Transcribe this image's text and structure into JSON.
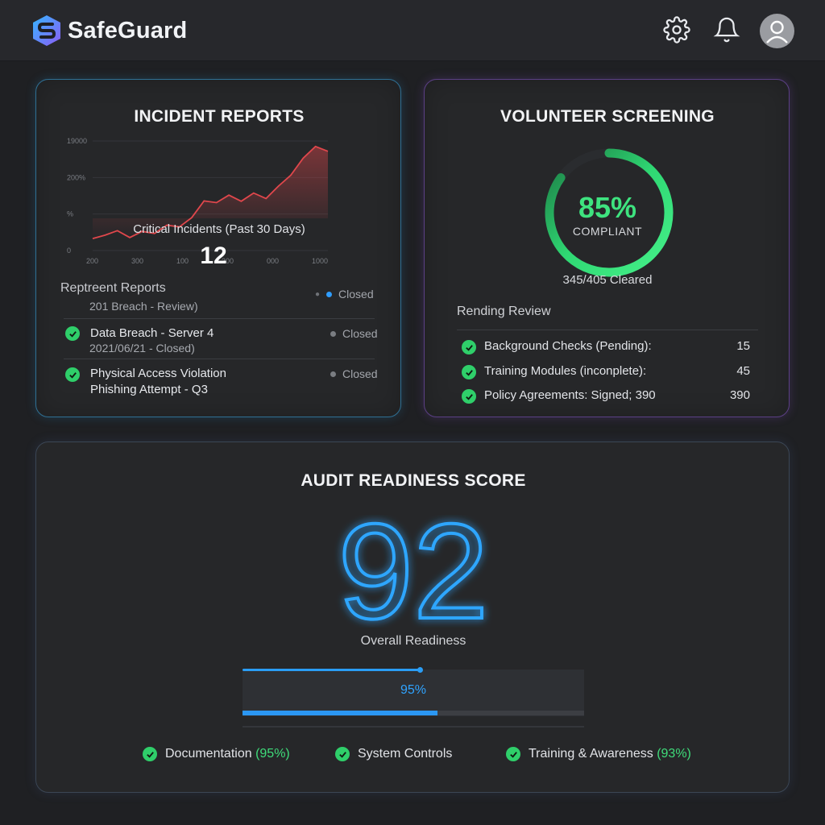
{
  "app": {
    "name": "SafeGuard"
  },
  "header": {
    "settings_icon": "gear-icon",
    "notifications_icon": "bell-icon",
    "avatar_icon": "user-avatar-icon"
  },
  "incident_reports": {
    "title": "INCIDENT REPORTS",
    "chart_data": {
      "type": "area",
      "y_ticks": [
        "19000",
        "200%",
        "%",
        "0"
      ],
      "x_ticks": [
        "200",
        "300",
        "100",
        "300",
        "000",
        "1000"
      ],
      "x": [
        1,
        2,
        3,
        4,
        5,
        6,
        7,
        8,
        9,
        10,
        11,
        12,
        13,
        14,
        15,
        16,
        17,
        18,
        19,
        20
      ],
      "values": [
        3.5,
        4.5,
        5.8,
        3.8,
        5.6,
        5.0,
        7.4,
        6.9,
        9.6,
        14.5,
        14.0,
        16.2,
        14.4,
        16.8,
        15.2,
        18.8,
        22.0,
        27.0,
        30.4,
        29.0
      ],
      "ylim": [
        0,
        32
      ],
      "color": "#e0474c",
      "grid": true
    },
    "caption": "Critical Incidents (Past 30 Days)",
    "count": "12",
    "reports_heading": "Reptreent Reports",
    "rows": [
      {
        "title": "",
        "subtitle": "201 Breach - Review)",
        "status": "Closed",
        "status_dot": "#2f9dff"
      },
      {
        "title": "Data Breach - Server 4",
        "subtitle": "2021/06/21 - Closed)",
        "status": "Closed",
        "status_dot": "#7a7d82"
      },
      {
        "title": "Physical Access Violation",
        "subtitle": "Phishing Attempt - Q3",
        "status": "Closed",
        "status_dot": "#7a7d82"
      }
    ]
  },
  "volunteer_screening": {
    "title": "VOLUNTEER SCREENING",
    "compliance_percent": 85,
    "compliance_label": "85%",
    "compliant_text": "COMPLIANT",
    "cleared_text": "345/405 Cleared",
    "pending_heading": "Rending Review",
    "items": [
      {
        "label": "Background Checks (Pending):",
        "value": "15"
      },
      {
        "label": "Training Modules (inconplete):",
        "value": "45"
      },
      {
        "label": "Policy Agreements: Signed; 390",
        "value": "390"
      }
    ]
  },
  "audit": {
    "title": "AUDIT READINESS SCORE",
    "score": "92",
    "score_label": "Overall Readiness",
    "progress_percent": 95,
    "progress_label": "95%",
    "metrics": [
      {
        "label": "Documentation",
        "pct": "(95%)"
      },
      {
        "label": "System Controls",
        "pct": ""
      },
      {
        "label": "Training & Awareness",
        "pct": "(93%)"
      }
    ]
  },
  "colors": {
    "accent_blue": "#2a9df5",
    "accent_green": "#3ee37f",
    "alert_red": "#e0474c",
    "purple_border": "#5b3f84"
  }
}
